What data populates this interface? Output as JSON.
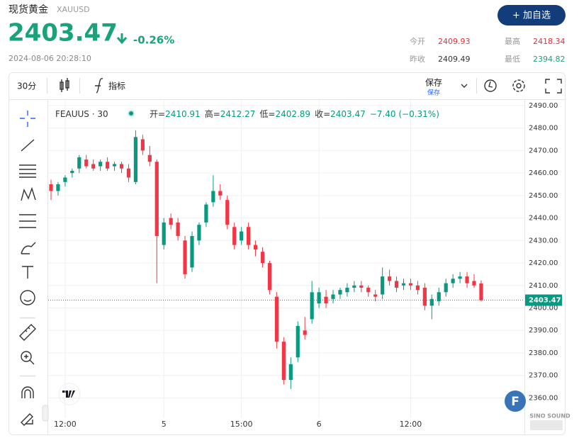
{
  "header": {
    "title": "现货黄金",
    "symbol": "XAUUSD",
    "price": "2403.47",
    "change": "-0.26%",
    "datetime": "2024-08-06 20:28:10",
    "button": "+ 加自选"
  },
  "stats": [
    {
      "label": "今开",
      "value": "2409.93"
    },
    {
      "label": "最高",
      "value": "2418.34"
    },
    {
      "label": "昨收",
      "value": "2409.49"
    },
    {
      "label": "最低",
      "value": "2394.82"
    }
  ],
  "toolbar": {
    "interval": "30分",
    "indicators": "指标",
    "save": "保存",
    "save_sub": "保存"
  },
  "legend": {
    "symbol": "FEAUUS · 30",
    "items": [
      {
        "label": "开=",
        "value": "2410.91"
      },
      {
        "label": "高=",
        "value": "2412.27"
      },
      {
        "label": "低=",
        "value": "2402.89"
      },
      {
        "label": "收=",
        "value": "2403.47"
      }
    ],
    "change": "−7.40 (−0.31%)"
  },
  "badges": {
    "logo": "F",
    "watermark": "SINO SOUND"
  },
  "chart_data": {
    "type": "candlestick",
    "categories": [
      null,
      null,
      "12:00",
      null,
      null,
      null,
      null,
      null,
      null,
      null,
      null,
      null,
      null,
      null,
      null,
      null,
      "5",
      null,
      null,
      null,
      null,
      null,
      null,
      null,
      null,
      null,
      null,
      "15:00",
      null,
      null,
      null,
      null,
      null,
      null,
      null,
      null,
      null,
      null,
      "6",
      null,
      null,
      null,
      null,
      null,
      null,
      null,
      null,
      null,
      null,
      null,
      null,
      "12:00",
      null,
      null,
      null,
      null,
      null,
      null,
      null,
      null,
      null,
      null
    ],
    "open": [
      2455,
      2452,
      2456,
      2460,
      2462,
      2466,
      2464,
      2463,
      2465,
      2463,
      2464,
      2462,
      2456,
      2475,
      2468,
      2465,
      2428,
      2440,
      2438,
      2430,
      2418,
      2430,
      2438,
      2447,
      2452,
      2448,
      2436,
      2430,
      2436,
      2428,
      2425,
      2420,
      2405,
      2385,
      2368,
      2378,
      2390,
      2395,
      2402,
      2405,
      2404,
      2406,
      2407,
      2409,
      2410,
      2409,
      2406,
      2406,
      2414,
      2412,
      2410,
      2411,
      2410,
      2409,
      2401,
      2403,
      2407,
      2411,
      2413,
      2414,
      2412,
      2410.91
    ],
    "high": [
      2457,
      2456,
      2459,
      2462,
      2468,
      2468,
      2466,
      2466,
      2467,
      2465,
      2465,
      2464,
      2479,
      2477,
      2472,
      2466,
      2440,
      2442,
      2440,
      2432,
      2434,
      2438,
      2447,
      2459,
      2455,
      2450,
      2438,
      2436,
      2438,
      2430,
      2427,
      2421,
      2407,
      2387,
      2378,
      2394,
      2396,
      2412,
      2409,
      2408,
      2408,
      2409,
      2411,
      2412,
      2412,
      2410,
      2408,
      2418,
      2417,
      2414,
      2413,
      2413,
      2412,
      2411,
      2406,
      2409,
      2413,
      2415,
      2416,
      2416,
      2415,
      2412.27
    ],
    "low": [
      2448,
      2450,
      2454,
      2458,
      2460,
      2462,
      2461,
      2461,
      2461,
      2461,
      2460,
      2456,
      2455,
      2468,
      2463,
      2411,
      2426,
      2435,
      2430,
      2413,
      2416,
      2428,
      2436,
      2445,
      2448,
      2435,
      2426,
      2428,
      2426,
      2423,
      2418,
      2406,
      2382,
      2366,
      2364,
      2376,
      2386,
      2393,
      2400,
      2400,
      2402,
      2404,
      2405,
      2407,
      2407,
      2405,
      2403,
      2404,
      2410,
      2407,
      2408,
      2408,
      2406,
      2399,
      2395,
      2401,
      2405,
      2409,
      2411,
      2409,
      2409,
      2402.89
    ],
    "close": [
      2452,
      2455,
      2458,
      2461,
      2467,
      2463,
      2462,
      2465,
      2462,
      2464,
      2462,
      2458,
      2476,
      2470,
      2465,
      2432,
      2438,
      2437,
      2432,
      2415,
      2432,
      2437,
      2446,
      2452,
      2450,
      2437,
      2428,
      2434,
      2428,
      2426,
      2420,
      2408,
      2385,
      2368,
      2375,
      2392,
      2388,
      2407,
      2407,
      2402,
      2406,
      2408,
      2409,
      2410,
      2409,
      2407,
      2405,
      2414,
      2412,
      2409,
      2411,
      2410,
      2408,
      2401,
      2404,
      2407,
      2411,
      2413,
      2414,
      2411,
      2410,
      2403.47
    ],
    "up_color": "#089981",
    "down_color": "#f23645",
    "last_price": 2403.47,
    "ylim": [
      2351,
      2492.5
    ],
    "yticks": [
      {
        "value": 2360,
        "label": "2360.00"
      },
      {
        "value": 2370,
        "label": "2370.00"
      },
      {
        "value": 2380,
        "label": "2380.00"
      },
      {
        "value": 2390,
        "label": "2390.00"
      },
      {
        "value": 2400,
        "label": "2400.00"
      },
      {
        "value": 2410,
        "label": "2410.00"
      },
      {
        "value": 2420,
        "label": "2420.00"
      },
      {
        "value": 2430,
        "label": "2430.00"
      },
      {
        "value": 2440,
        "label": "2440.00"
      },
      {
        "value": 2450,
        "label": "2450.00"
      },
      {
        "value": 2460,
        "label": "2460.00"
      },
      {
        "value": 2470,
        "label": "2470.00"
      },
      {
        "value": 2480,
        "label": "2480.00"
      },
      {
        "value": 2490,
        "label": "2490.00"
      }
    ],
    "grid": true
  }
}
